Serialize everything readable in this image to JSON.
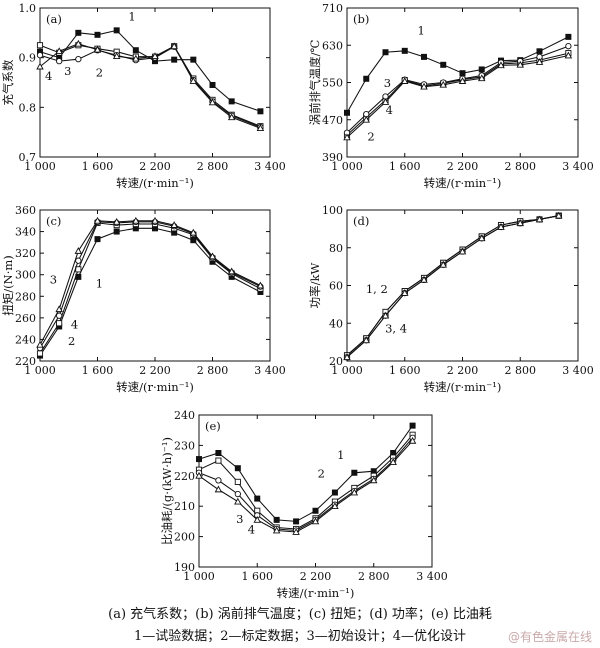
{
  "caption_line1": "(a) 充气系数；(b) 涡前排气温度；(c) 扭矩；(d) 功率；(e) 比油耗",
  "caption_line2": "1—试验数据；2—标定数据；3—初始设计；4—优化设计",
  "watermark": "@有色金属在线",
  "chart_data": [
    {
      "id": "a",
      "panel_label": "(a)",
      "type": "line",
      "xlabel": "转速/(r·min⁻¹)",
      "ylabel": "充气系数",
      "xlim": [
        1000,
        3400
      ],
      "ylim": [
        0.7,
        1.0
      ],
      "xticks": [
        1000,
        1600,
        2200,
        2800,
        3400
      ],
      "xtick_labels": [
        "1 000",
        "1 600",
        "2 200",
        "2 800",
        "3 400"
      ],
      "yticks": [
        0.7,
        0.8,
        0.9,
        1.0
      ],
      "ytick_labels": [
        "0.7",
        "0.8",
        "0.9",
        "1.0"
      ],
      "series": [
        {
          "name": "1",
          "marker": "square-filled",
          "x": [
            1000,
            1200,
            1400,
            1600,
            1800,
            2000,
            2200,
            2400,
            2600,
            2800,
            3000,
            3300
          ],
          "y": [
            0.912,
            0.9,
            0.95,
            0.946,
            0.955,
            0.915,
            0.893,
            0.896,
            0.896,
            0.845,
            0.812,
            0.792
          ]
        },
        {
          "name": "2",
          "marker": "square-open",
          "x": [
            1000,
            1200,
            1400,
            1600,
            1800,
            2000,
            2200,
            2400,
            2600,
            2800,
            3000,
            3300
          ],
          "y": [
            0.925,
            0.91,
            0.925,
            0.918,
            0.912,
            0.902,
            0.902,
            0.923,
            0.858,
            0.815,
            0.785,
            0.762
          ]
        },
        {
          "name": "3",
          "marker": "circle-open",
          "x": [
            1000,
            1200,
            1400,
            1600,
            1800,
            2000,
            2200,
            2400,
            2600,
            2800,
            3000,
            3300
          ],
          "y": [
            0.905,
            0.893,
            0.897,
            0.915,
            0.905,
            0.895,
            0.9,
            0.922,
            0.855,
            0.812,
            0.783,
            0.76
          ]
        },
        {
          "name": "4",
          "marker": "triangle-open",
          "x": [
            1000,
            1200,
            1400,
            1600,
            1800,
            2000,
            2200,
            2400,
            2600,
            2800,
            3000,
            3300
          ],
          "y": [
            0.882,
            0.913,
            0.928,
            0.916,
            0.903,
            0.898,
            0.903,
            0.923,
            0.853,
            0.81,
            0.78,
            0.758
          ]
        }
      ],
      "annotations": [
        {
          "text": "1",
          "x": 1960,
          "y": 0.975
        },
        {
          "text": "2",
          "x": 1620,
          "y": 0.862
        },
        {
          "text": "3",
          "x": 1290,
          "y": 0.865
        },
        {
          "text": "4",
          "x": 1090,
          "y": 0.855
        }
      ]
    },
    {
      "id": "b",
      "panel_label": "(b)",
      "type": "line",
      "xlabel": "转速/(r·min⁻¹)",
      "ylabel": "涡前排气温度/℃",
      "xlim": [
        1000,
        3400
      ],
      "ylim": [
        390,
        710
      ],
      "xticks": [
        1000,
        1600,
        2200,
        2800,
        3400
      ],
      "xtick_labels": [
        "1 000",
        "1 600",
        "2 200",
        "2 800",
        "3 400"
      ],
      "yticks": [
        390,
        470,
        550,
        630,
        710
      ],
      "ytick_labels": [
        "390",
        "470",
        "550",
        "630",
        "710"
      ],
      "series": [
        {
          "name": "1",
          "marker": "square-filled",
          "x": [
            1000,
            1200,
            1400,
            1600,
            1800,
            2000,
            2200,
            2400,
            2600,
            2800,
            3000,
            3300
          ],
          "y": [
            485,
            558,
            615,
            618,
            605,
            588,
            570,
            578,
            597,
            598,
            617,
            648
          ]
        },
        {
          "name": "2",
          "marker": "square-open",
          "x": [
            1000,
            1200,
            1400,
            1600,
            1800,
            2000,
            2200,
            2400,
            2600,
            2800,
            3000,
            3300
          ],
          "y": [
            437,
            475,
            512,
            555,
            543,
            548,
            556,
            562,
            590,
            592,
            598,
            613
          ]
        },
        {
          "name": "3",
          "marker": "circle-open",
          "x": [
            1000,
            1200,
            1400,
            1600,
            1800,
            2000,
            2200,
            2400,
            2600,
            2800,
            3000,
            3300
          ],
          "y": [
            442,
            482,
            520,
            556,
            546,
            550,
            558,
            565,
            593,
            596,
            605,
            628
          ]
        },
        {
          "name": "4",
          "marker": "triangle-open",
          "x": [
            1000,
            1200,
            1400,
            1600,
            1800,
            2000,
            2200,
            2400,
            2600,
            2800,
            3000,
            3300
          ],
          "y": [
            432,
            470,
            508,
            553,
            541,
            545,
            553,
            559,
            587,
            588,
            594,
            608
          ]
        }
      ],
      "annotations": [
        {
          "text": "1",
          "x": 1770,
          "y": 653
        },
        {
          "text": "2",
          "x": 1250,
          "y": 425
        },
        {
          "text": "3",
          "x": 1420,
          "y": 540
        },
        {
          "text": "4",
          "x": 1440,
          "y": 482
        }
      ]
    },
    {
      "id": "c",
      "panel_label": "(c)",
      "type": "line",
      "xlabel": "转速/(r·min⁻¹)",
      "ylabel": "扭矩/(N·m)",
      "xlim": [
        1000,
        3400
      ],
      "ylim": [
        220,
        360
      ],
      "xticks": [
        1000,
        1600,
        2200,
        2800,
        3400
      ],
      "xtick_labels": [
        "1 000",
        "1 600",
        "2 200",
        "2 800",
        "3 400"
      ],
      "yticks": [
        220,
        240,
        260,
        280,
        300,
        320,
        340,
        360
      ],
      "ytick_labels": [
        "220",
        "240",
        "260",
        "280",
        "300",
        "320",
        "340",
        "360"
      ],
      "series": [
        {
          "name": "1",
          "marker": "square-filled",
          "x": [
            1000,
            1200,
            1400,
            1600,
            1800,
            2000,
            2200,
            2400,
            2600,
            2800,
            3000,
            3300
          ],
          "y": [
            225,
            252,
            298,
            333,
            340,
            343,
            343,
            339,
            332,
            312,
            298,
            284
          ]
        },
        {
          "name": "2",
          "marker": "square-open",
          "x": [
            1000,
            1200,
            1400,
            1600,
            1800,
            2000,
            2200,
            2400,
            2600,
            2800,
            3000,
            3300
          ],
          "y": [
            227,
            255,
            305,
            348,
            346,
            347,
            347,
            343,
            337,
            315,
            301,
            287
          ]
        },
        {
          "name": "3",
          "marker": "circle-open",
          "x": [
            1000,
            1200,
            1400,
            1600,
            1800,
            2000,
            2200,
            2400,
            2600,
            2800,
            3000,
            3300
          ],
          "y": [
            232,
            262,
            313,
            349,
            348,
            349,
            349,
            345,
            338,
            316,
            302,
            289
          ]
        },
        {
          "name": "4",
          "marker": "triangle-open",
          "x": [
            1000,
            1200,
            1400,
            1600,
            1800,
            2000,
            2200,
            2400,
            2600,
            2800,
            3000,
            3300
          ],
          "y": [
            235,
            268,
            322,
            350,
            349,
            350,
            350,
            346,
            339,
            317,
            303,
            290
          ]
        }
      ],
      "annotations": [
        {
          "text": "1",
          "x": 1620,
          "y": 288
        },
        {
          "text": "2",
          "x": 1330,
          "y": 235
        },
        {
          "text": "3",
          "x": 1140,
          "y": 292
        },
        {
          "text": "4",
          "x": 1360,
          "y": 250
        }
      ]
    },
    {
      "id": "d",
      "panel_label": "(d)",
      "type": "line",
      "xlabel": "转速/(r·min⁻¹)",
      "ylabel": "功率/kW",
      "xlim": [
        1000,
        3400
      ],
      "ylim": [
        20,
        100
      ],
      "xticks": [
        1000,
        1600,
        2200,
        2800,
        3400
      ],
      "xtick_labels": [
        "1 000",
        "1 600",
        "2 200",
        "2 800",
        "3 400"
      ],
      "yticks": [
        20,
        40,
        60,
        80,
        100
      ],
      "ytick_labels": [
        "20",
        "40",
        "60",
        "80",
        "100"
      ],
      "series": [
        {
          "name": "1",
          "marker": "square-filled",
          "x": [
            1000,
            1200,
            1400,
            1600,
            1800,
            2000,
            2200,
            2400,
            2600,
            2800,
            3000,
            3200
          ],
          "y": [
            23,
            32,
            46,
            57,
            64,
            72,
            79,
            86,
            92,
            94,
            95,
            97
          ]
        },
        {
          "name": "2",
          "marker": "square-open",
          "x": [
            1000,
            1200,
            1400,
            1600,
            1800,
            2000,
            2200,
            2400,
            2600,
            2800,
            3000,
            3200
          ],
          "y": [
            23,
            32,
            46,
            57,
            64,
            72,
            79,
            86,
            92,
            94,
            95,
            97
          ]
        },
        {
          "name": "3",
          "marker": "circle-open",
          "x": [
            1000,
            1200,
            1400,
            1600,
            1800,
            2000,
            2200,
            2400,
            2600,
            2800,
            3000,
            3200
          ],
          "y": [
            22,
            31,
            44,
            56,
            63,
            71,
            78,
            85,
            91,
            93,
            95,
            97
          ]
        },
        {
          "name": "4",
          "marker": "triangle-open",
          "x": [
            1000,
            1200,
            1400,
            1600,
            1800,
            2000,
            2200,
            2400,
            2600,
            2800,
            3000,
            3200
          ],
          "y": [
            22,
            31,
            44,
            56,
            63,
            71,
            78,
            85,
            91,
            93,
            95,
            97
          ]
        }
      ],
      "annotations": [
        {
          "text": "1, 2",
          "x": 1310,
          "y": 56
        },
        {
          "text": "3, 4",
          "x": 1510,
          "y": 35
        }
      ]
    },
    {
      "id": "e",
      "panel_label": "(e)",
      "type": "line",
      "xlabel": "转速/(r·min⁻¹)",
      "ylabel": "比油耗/(g·(kW·h)⁻¹)",
      "xlim": [
        1000,
        3400
      ],
      "ylim": [
        190,
        240
      ],
      "xticks": [
        1000,
        1600,
        2200,
        2800,
        3400
      ],
      "xtick_labels": [
        "1 000",
        "1 600",
        "2 200",
        "2 800",
        "3 400"
      ],
      "yticks": [
        190,
        200,
        210,
        220,
        230,
        240
      ],
      "ytick_labels": [
        "190",
        "200",
        "210",
        "220",
        "230",
        "240"
      ],
      "series": [
        {
          "name": "1",
          "marker": "square-filled",
          "x": [
            1000,
            1200,
            1400,
            1600,
            1800,
            2000,
            2200,
            2400,
            2600,
            2800,
            3000,
            3200
          ],
          "y": [
            225.5,
            227.5,
            222.5,
            212.5,
            205.5,
            205.0,
            208.5,
            214.5,
            221.0,
            221.5,
            227.5,
            236.5
          ]
        },
        {
          "name": "2",
          "marker": "square-open",
          "x": [
            1000,
            1200,
            1400,
            1600,
            1800,
            2000,
            2200,
            2400,
            2600,
            2800,
            3000,
            3200
          ],
          "y": [
            222.0,
            225.0,
            218.0,
            208.5,
            203.0,
            202.5,
            206.0,
            211.5,
            216.0,
            220.0,
            226.0,
            233.5
          ]
        },
        {
          "name": "3",
          "marker": "circle-open",
          "x": [
            1000,
            1200,
            1400,
            1600,
            1800,
            2000,
            2200,
            2400,
            2600,
            2800,
            3000,
            3200
          ],
          "y": [
            221.0,
            218.5,
            214.0,
            207.0,
            202.5,
            202.0,
            205.5,
            210.5,
            215.0,
            219.0,
            225.0,
            232.5
          ]
        },
        {
          "name": "4",
          "marker": "triangle-open",
          "x": [
            1000,
            1200,
            1400,
            1600,
            1800,
            2000,
            2200,
            2400,
            2600,
            2800,
            3000,
            3200
          ],
          "y": [
            220.0,
            215.5,
            211.5,
            205.5,
            202.0,
            201.5,
            205.0,
            210.0,
            214.5,
            218.5,
            224.5,
            231.5
          ]
        }
      ],
      "annotations": [
        {
          "text": "1",
          "x": 2460,
          "y": 225.5
        },
        {
          "text": "2",
          "x": 2260,
          "y": 219.5
        },
        {
          "text": "3",
          "x": 1420,
          "y": 204.5
        },
        {
          "text": "4",
          "x": 1540,
          "y": 201.0
        }
      ]
    }
  ]
}
